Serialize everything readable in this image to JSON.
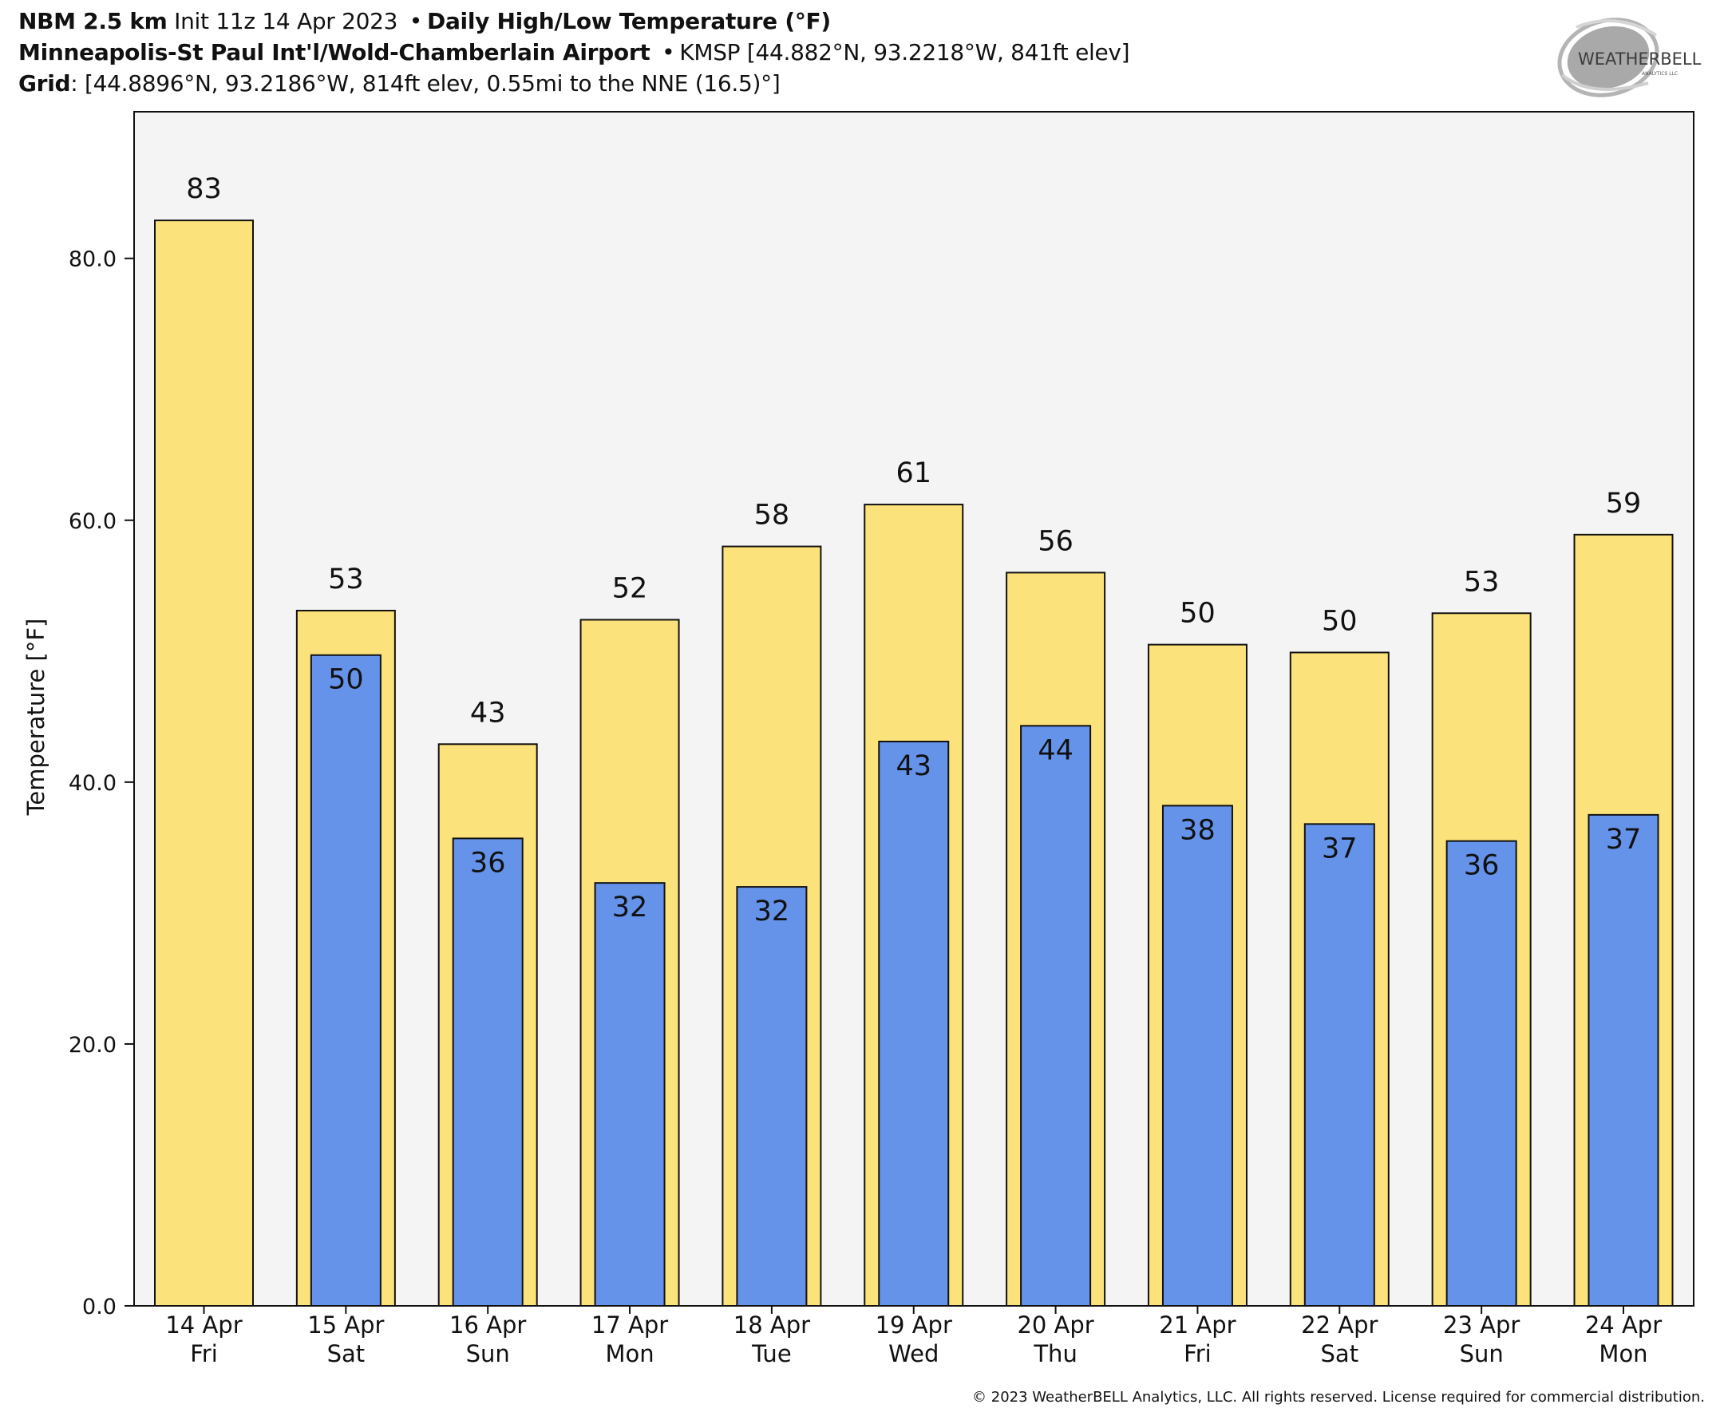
{
  "header": {
    "line1": {
      "model": "NBM 2.5 km",
      "init": "Init 11z 14 Apr 2023",
      "separator": "•",
      "product": "Daily High/Low Temperature (°F)"
    },
    "line2": {
      "station_name": "Minneapolis-St Paul Int'l/Wold-Chamberlain Airport",
      "separator": "•",
      "station_info": "KMSP [44.882°N, 93.2218°W, 841ft elev]"
    },
    "line3": {
      "grid_label": "Grid",
      "grid_info": ": [44.8896°N, 93.2186°W, 814ft elev, 0.55mi to the NNE (16.5)°]"
    }
  },
  "logo": {
    "icon": "weatherbell-swirl-logo",
    "text_main": "WEATHERBELL",
    "text_sub": "ANALYTICS LLC"
  },
  "colors": {
    "high": "#fce27a",
    "low": "#6593ea",
    "plot_bg": "#f4f4f5",
    "edge": "#111111"
  },
  "chart_data": {
    "type": "bar",
    "title": "Daily High/Low Temperature (°F)",
    "xlabel": "",
    "ylabel": "Temperature [°F]",
    "ylim": [
      0,
      91.2
    ],
    "yticks": [
      0,
      20,
      40,
      60,
      80
    ],
    "ytick_labels": [
      "0.0",
      "20.0",
      "40.0",
      "60.0",
      "80.0"
    ],
    "grid": false,
    "legend": "none",
    "categories": [
      [
        "14 Apr",
        "Fri"
      ],
      [
        "15 Apr",
        "Sat"
      ],
      [
        "16 Apr",
        "Sun"
      ],
      [
        "17 Apr",
        "Mon"
      ],
      [
        "18 Apr",
        "Tue"
      ],
      [
        "19 Apr",
        "Wed"
      ],
      [
        "20 Apr",
        "Thu"
      ],
      [
        "21 Apr",
        "Fri"
      ],
      [
        "22 Apr",
        "Sat"
      ],
      [
        "23 Apr",
        "Sun"
      ],
      [
        "24 Apr",
        "Mon"
      ]
    ],
    "series": [
      {
        "name": "High",
        "values": [
          82.9,
          53.1,
          42.9,
          52.4,
          58.0,
          61.2,
          56.0,
          50.5,
          49.9,
          52.9,
          58.9
        ],
        "labels": [
          "83",
          "53",
          "43",
          "52",
          "58",
          "61",
          "56",
          "50",
          "50",
          "53",
          "59"
        ]
      },
      {
        "name": "Low",
        "values": [
          null,
          49.7,
          35.7,
          32.3,
          32.0,
          43.1,
          44.3,
          38.2,
          36.8,
          35.5,
          37.5
        ],
        "labels": [
          null,
          "50",
          "36",
          "32",
          "32",
          "43",
          "44",
          "38",
          "37",
          "36",
          "37"
        ]
      }
    ]
  },
  "footer": {
    "copyright": "© 2023 WeatherBELL Analytics, LLC. All rights reserved. License required for commercial distribution."
  }
}
